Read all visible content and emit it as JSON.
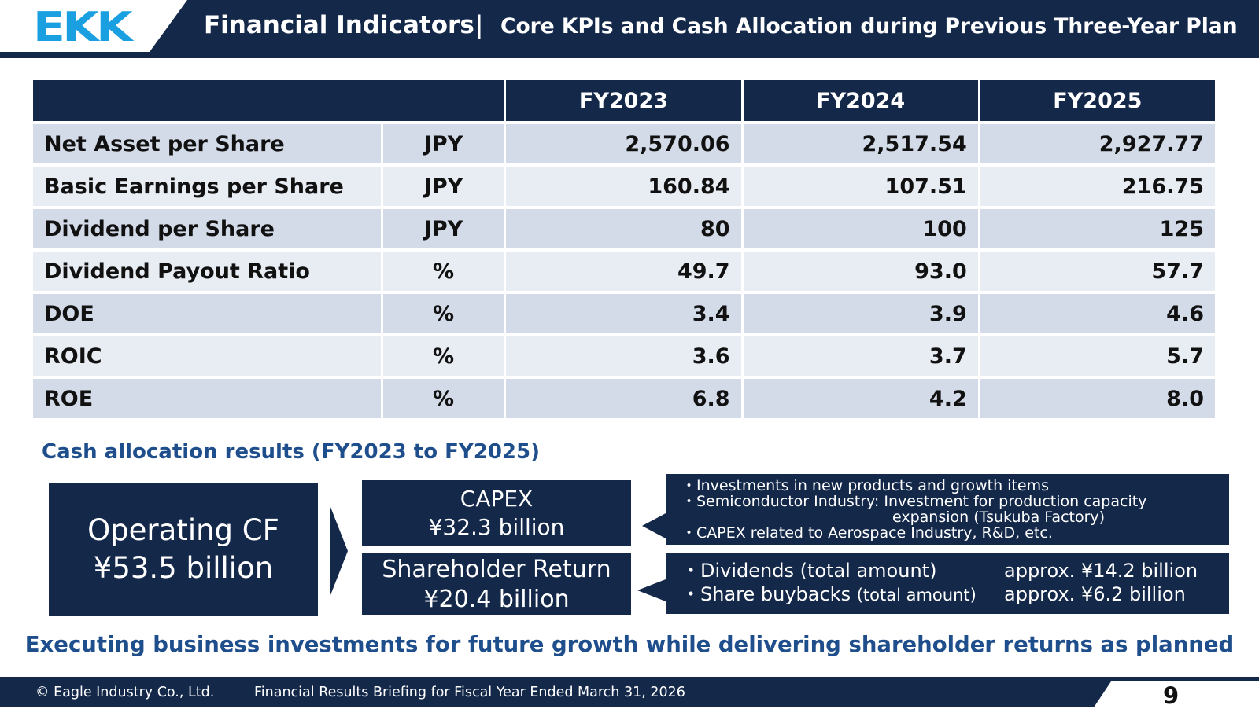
{
  "header": {
    "logo_text": "EKK",
    "title": "Financial Indicators",
    "separator": "|",
    "subtitle": "Core KPIs and Cash Allocation during Previous Three-Year Plan"
  },
  "kpi_table": {
    "columns": [
      "FY2023",
      "FY2024",
      "FY2025"
    ],
    "rows": [
      {
        "label": "Net Asset per Share",
        "unit": "JPY",
        "values": [
          "2,570.06",
          "2,517.54",
          "2,927.77"
        ]
      },
      {
        "label": "Basic Earnings per Share",
        "unit": "JPY",
        "values": [
          "160.84",
          "107.51",
          "216.75"
        ]
      },
      {
        "label": "Dividend per Share",
        "unit": "JPY",
        "values": [
          "80",
          "100",
          "125"
        ]
      },
      {
        "label": "Dividend Payout Ratio",
        "unit": "%",
        "values": [
          "49.7",
          "93.0",
          "57.7"
        ]
      },
      {
        "label": "DOE",
        "unit": "%",
        "values": [
          "3.4",
          "3.9",
          "4.6"
        ]
      },
      {
        "label": "ROIC",
        "unit": "%",
        "values": [
          "3.6",
          "3.7",
          "5.7"
        ]
      },
      {
        "label": "ROE",
        "unit": "%",
        "values": [
          "6.8",
          "4.2",
          "8.0"
        ]
      }
    ]
  },
  "cash_allocation": {
    "title": "Cash allocation results (FY2023 to FY2025)",
    "operating_cf": {
      "line1": "Operating CF",
      "line2": "¥53.5 billion"
    },
    "capex": {
      "line1": "CAPEX",
      "line2": "¥32.3 billion"
    },
    "shareholder_return": {
      "line1": "Shareholder Return",
      "line2": "¥20.4 billion"
    },
    "capex_details": [
      "・Investments in new products and growth items",
      "・Semiconductor Industry: Investment for production capacity",
      "expansion (Tsukuba Factory)",
      "・CAPEX related to Aerospace Industry, R&D, etc."
    ],
    "return_details": [
      {
        "label": "・Dividends (total amount)",
        "amount": "approx. ¥14.2 billion"
      },
      {
        "label": "・Share buybacks",
        "label_small": "(total amount)",
        "amount": "approx. ¥6.2 billion"
      }
    ]
  },
  "conclusion": "Executing business investments for future growth while delivering shareholder returns as planned",
  "footer": {
    "copyright": "© Eagle Industry Co., Ltd.",
    "title": "Financial Results Briefing for Fiscal Year Ended March 31, 2026",
    "page": "9"
  },
  "colors": {
    "navy": "#14284a",
    "accent_blue": "#1f4e8c",
    "logo_cyan": "#1aa0e0",
    "row_light": "#d4dbe8",
    "row_lighter": "#e8ecf3"
  }
}
